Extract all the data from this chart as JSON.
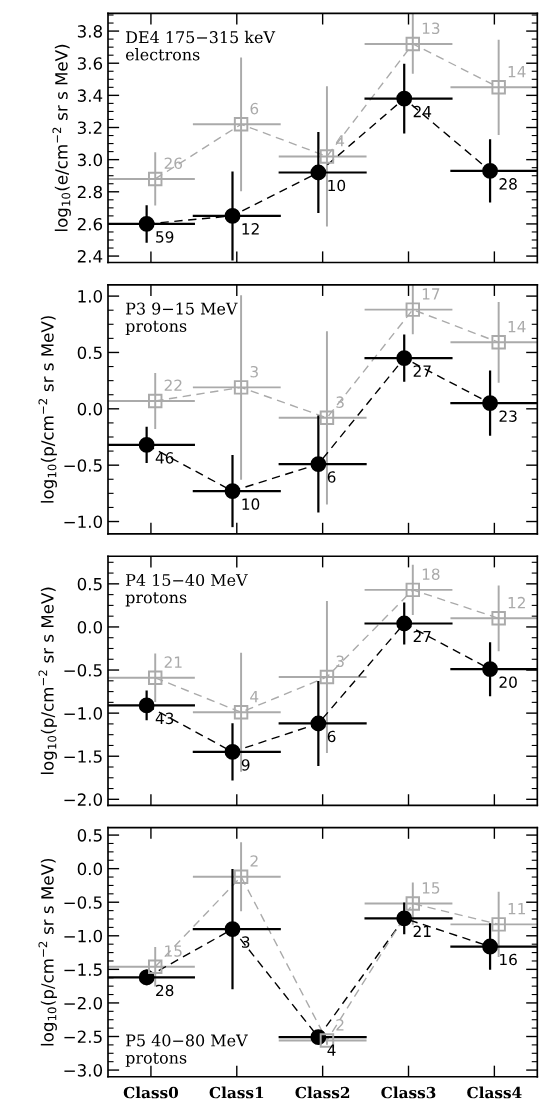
{
  "chart_data": [
    {
      "type": "line",
      "ylabel": "log$_{10}$(e/cm$^{−2}$ sr s MeV)",
      "categories": [
        "Class0",
        "Class1",
        "Class2",
        "Class3",
        "Class4"
      ],
      "ylim": [
        2.36,
        3.91
      ],
      "yticks": [
        {
          "value": 2.4,
          "label": "2.4"
        },
        {
          "value": 2.6,
          "label": "2.6"
        },
        {
          "value": 2.8,
          "label": "2.8"
        },
        {
          "value": 3.0,
          "label": "3.0"
        },
        {
          "value": 3.2,
          "label": "3.2"
        },
        {
          "value": 3.4,
          "label": "3.4"
        },
        {
          "value": 3.6,
          "label": "3.6"
        },
        {
          "value": 3.8,
          "label": "3.8"
        }
      ],
      "tick_labels": "y",
      "line_style": "dashed",
      "series": [
        {
          "color": "#000000",
          "marker": "circle",
          "values": [
            2.6,
            2.65,
            2.92,
            3.38,
            2.93
          ],
          "errors": [
            0.11,
            0.27,
            0.245,
            0.21,
            0.19
          ]
        },
        {
          "color": "#aaaaaa",
          "marker": "square",
          "values": [
            2.88,
            3.22,
            3.02,
            3.72,
            3.45
          ],
          "errors": [
            0.16,
            0.41,
            0.43,
            0.18,
            0.29
          ]
        }
      ],
      "annotations": [
        "DE4 175−315 keV\nelectrons",
        {
          "text": "59",
          "x": "Class0",
          "y": 2.6
        },
        {
          "text": "12",
          "x": "Class1",
          "y": 2.65
        },
        {
          "text": "10",
          "x": "Class2",
          "y": 2.92
        },
        {
          "text": "24",
          "x": "Class3",
          "y": 3.38
        },
        {
          "text": "28",
          "x": "Class4",
          "y": 2.93
        },
        {
          "text": "26",
          "x": "Class0",
          "y": 2.88
        },
        {
          "text": "6",
          "x": "Class1",
          "y": 3.22
        },
        {
          "text": "4",
          "x": "Class2",
          "y": 3.02
        },
        {
          "text": "13",
          "x": "Class3",
          "y": 3.72
        },
        {
          "text": "14",
          "x": "Class4",
          "y": 3.45
        }
      ]
    },
    {
      "type": "line",
      "ylabel": "log$_{10}$(p/cm$^{−2}$ sr s MeV)",
      "categories": [
        "Class0",
        "Class1",
        "Class2",
        "Class3",
        "Class4"
      ],
      "ylim": [
        -1.11,
        1.1
      ],
      "yticks": [
        {
          "value": -1.0,
          "label": "−1.0"
        },
        {
          "value": -0.5,
          "label": "−0.5"
        },
        {
          "value": 0.0,
          "label": "0.0"
        },
        {
          "value": 0.5,
          "label": "0.5"
        },
        {
          "value": 1.0,
          "label": "1.0"
        }
      ],
      "tick_labels": "y",
      "line_style": "dashed",
      "series": [
        {
          "color": "#000000",
          "marker": "circle",
          "values": [
            -0.32,
            -0.73,
            -0.49,
            0.45,
            0.05
          ],
          "errors": [
            0.15,
            0.31,
            0.42,
            0.2,
            0.28
          ]
        },
        {
          "color": "#aaaaaa",
          "marker": "square",
          "values": [
            0.07,
            0.19,
            -0.08,
            0.88,
            0.59
          ],
          "errors": [
            0.24,
            0.81,
            0.76,
            0.21,
            0.35
          ]
        }
      ],
      "annotations": [
        "P3 9−15 MeV\nprotons",
        {
          "text": "46",
          "x": "Class0",
          "y": -0.32
        },
        {
          "text": "10",
          "x": "Class1",
          "y": -0.73
        },
        {
          "text": "6",
          "x": "Class2",
          "y": -0.49
        },
        {
          "text": "27",
          "x": "Class3",
          "y": 0.45
        },
        {
          "text": "23",
          "x": "Class4",
          "y": 0.05
        },
        {
          "text": "22",
          "x": "Class0",
          "y": 0.07
        },
        {
          "text": "3",
          "x": "Class1",
          "y": 0.19
        },
        {
          "text": "3",
          "x": "Class2",
          "y": -0.08
        },
        {
          "text": "17",
          "x": "Class3",
          "y": 0.88
        },
        {
          "text": "14",
          "x": "Class4",
          "y": 0.59
        }
      ]
    },
    {
      "type": "line",
      "ylabel": "log$_{10}$(p/cm$^{−2}$ sr s MeV)",
      "categories": [
        "Class0",
        "Class1",
        "Class2",
        "Class3",
        "Class4"
      ],
      "ylim": [
        -2.07,
        0.82
      ],
      "yticks": [
        {
          "value": -2.0,
          "label": "−2.0"
        },
        {
          "value": -1.5,
          "label": "−1.5"
        },
        {
          "value": -1.0,
          "label": "−1.0"
        },
        {
          "value": -0.5,
          "label": "−0.5"
        },
        {
          "value": 0.0,
          "label": "0.0"
        },
        {
          "value": 0.5,
          "label": "0.5"
        }
      ],
      "tick_labels": "y",
      "line_style": "dashed",
      "series": [
        {
          "color": "#000000",
          "marker": "circle",
          "values": [
            -0.91,
            -1.45,
            -1.12,
            0.04,
            -0.49
          ],
          "errors": [
            0.16,
            0.32,
            0.48,
            0.23,
            0.3
          ]
        },
        {
          "color": "#aaaaaa",
          "marker": "square",
          "values": [
            -0.59,
            -0.99,
            -0.58,
            0.43,
            0.1
          ],
          "errors": [
            0.27,
            0.68,
            0.87,
            0.28,
            0.37
          ]
        }
      ],
      "annotations": [
        "P4 15−40 MeV\nprotons",
        {
          "text": "43",
          "x": "Class0",
          "y": -0.91
        },
        {
          "text": "9",
          "x": "Class1",
          "y": -1.45
        },
        {
          "text": "6",
          "x": "Class2",
          "y": -1.12
        },
        {
          "text": "27",
          "x": "Class3",
          "y": 0.04
        },
        {
          "text": "20",
          "x": "Class4",
          "y": -0.49
        },
        {
          "text": "21",
          "x": "Class0",
          "y": -0.59
        },
        {
          "text": "4",
          "x": "Class1",
          "y": -0.99
        },
        {
          "text": "3",
          "x": "Class2",
          "y": -0.58
        },
        {
          "text": "18",
          "x": "Class3",
          "y": 0.43
        },
        {
          "text": "12",
          "x": "Class4",
          "y": 0.1
        }
      ]
    },
    {
      "type": "line",
      "ylabel": "log$_{10}$(p/cm$^{−2}$ sr s MeV)",
      "categories": [
        "Class0",
        "Class1",
        "Class2",
        "Class3",
        "Class4"
      ],
      "ylim": [
        -3.1,
        0.61
      ],
      "yticks": [
        {
          "value": -3.0,
          "label": "−3.0"
        },
        {
          "value": -2.5,
          "label": "−2.5"
        },
        {
          "value": -2.0,
          "label": "−2.0"
        },
        {
          "value": -1.5,
          "label": "−1.5"
        },
        {
          "value": -1.0,
          "label": "−1.0"
        },
        {
          "value": -0.5,
          "label": "−0.5"
        },
        {
          "value": 0.0,
          "label": "0.0"
        },
        {
          "value": 0.5,
          "label": "0.5"
        }
      ],
      "line_style": "dashed",
      "series": [
        {
          "color": "#000000",
          "marker": "circle",
          "values": [
            -1.62,
            -0.9,
            -2.51,
            -0.74,
            -1.16
          ],
          "errors": [
            0.1,
            0.88,
            0.08,
            0.22,
            0.33
          ]
        },
        {
          "color": "#aaaaaa",
          "marker": "square",
          "values": [
            -1.46,
            -0.12,
            -2.56,
            -0.52,
            -0.83
          ],
          "errors": [
            0.28,
            0.5,
            0.05,
            0.3,
            0.47
          ]
        }
      ],
      "annotations": [
        "P5 40−80 MeV\nprotons",
        {
          "text": "28",
          "x": "Class0",
          "y": -1.62
        },
        {
          "text": "3",
          "x": "Class1",
          "y": -0.9
        },
        {
          "text": "4",
          "x": "Class2",
          "y": -2.51
        },
        {
          "text": "21",
          "x": "Class3",
          "y": -0.74
        },
        {
          "text": "16",
          "x": "Class4",
          "y": -1.16
        },
        {
          "text": "15",
          "x": "Class0",
          "y": -1.46
        },
        {
          "text": "2",
          "x": "Class1",
          "y": -0.12
        },
        {
          "text": "2",
          "x": "Class2",
          "y": -2.56
        },
        {
          "text": "15",
          "x": "Class3",
          "y": -0.52
        },
        {
          "text": "11",
          "x": "Class4",
          "y": -0.83
        }
      ]
    }
  ]
}
